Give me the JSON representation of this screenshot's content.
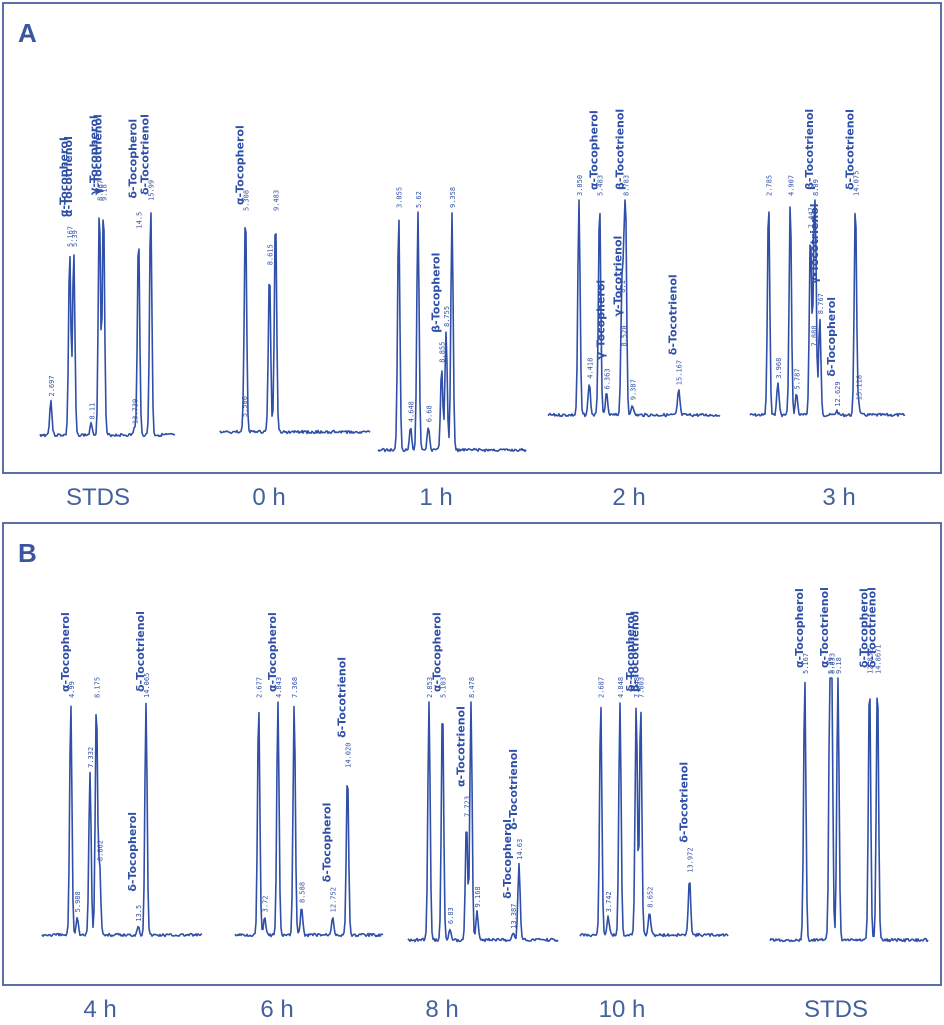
{
  "panels": {
    "a_letter": "A",
    "b_letter": "B",
    "a_time_labels": [
      "STDS",
      "0 h",
      "1 h",
      "2 h",
      "3 h"
    ],
    "b_time_labels": [
      "4 h",
      "6 h",
      "8 h",
      "10 h",
      "STDS"
    ]
  },
  "chart_data": [
    {
      "type": "line",
      "panel": "A",
      "subtitle": "STDS",
      "peaks": [
        {
          "rt": "2.697",
          "height": 0.15,
          "label": ""
        },
        {
          "rt": "5.167",
          "height": 0.8,
          "label": "α-Tocopherol"
        },
        {
          "rt": "5.39",
          "height": 0.8,
          "label": "α-Tocotrienol"
        },
        {
          "rt": "8.11",
          "height": 0.05,
          "label": ""
        },
        {
          "rt": "8.867",
          "height": 1.0,
          "label": "γ-Tocopherol"
        },
        {
          "rt": "9.18",
          "height": 1.0,
          "label": "γ-Tocotrienol"
        },
        {
          "rt": "13.739",
          "height": 0.03,
          "label": ""
        },
        {
          "rt": "14.5",
          "height": 0.88,
          "label": "δ-Tocopherol"
        },
        {
          "rt": "15.99",
          "height": 1.0,
          "label": "δ-Tocotrienol"
        }
      ]
    },
    {
      "type": "line",
      "panel": "A",
      "subtitle": "0 h",
      "peaks": [
        {
          "rt": "5.500",
          "height": 0.05,
          "label": ""
        },
        {
          "rt": "5.308",
          "height": 1.0,
          "label": "α-Tocopherol"
        },
        {
          "rt": "8.615",
          "height": 0.75,
          "label": ""
        },
        {
          "rt": "9.483",
          "height": 1.0,
          "label": ""
        }
      ]
    },
    {
      "type": "line",
      "panel": "A",
      "subtitle": "1 h",
      "peaks": [
        {
          "rt": "3.055",
          "height": 1.0,
          "label": ""
        },
        {
          "rt": "4.648",
          "height": 0.1,
          "label": ""
        },
        {
          "rt": "5.62",
          "height": 1.0,
          "label": ""
        },
        {
          "rt": "6.68",
          "height": 0.1,
          "label": ""
        },
        {
          "rt": "8.855",
          "height": 0.35,
          "label": "β-Tocopherol"
        },
        {
          "rt": "8.755",
          "height": 0.5,
          "label": ""
        },
        {
          "rt": "9.358",
          "height": 1.0,
          "label": ""
        }
      ]
    },
    {
      "type": "line",
      "panel": "A",
      "subtitle": "2 h",
      "peaks": [
        {
          "rt": "3.050",
          "height": 1.0,
          "label": ""
        },
        {
          "rt": "4.418",
          "height": 0.15,
          "label": ""
        },
        {
          "rt": "5.483",
          "height": 1.0,
          "label": "α-Tocopherol"
        },
        {
          "rt": "6.363",
          "height": 0.1,
          "label": "γ-Tocopherol"
        },
        {
          "rt": "8.1",
          "height": 0.55,
          "label": ""
        },
        {
          "rt": "8.520",
          "height": 0.3,
          "label": "γ-Tocotrienol"
        },
        {
          "rt": "8.783",
          "height": 1.0,
          "label": "β-Tocotrienol"
        },
        {
          "rt": "9.387",
          "height": 0.05,
          "label": ""
        },
        {
          "rt": "15.167",
          "height": 0.12,
          "label": "δ-Tocotrienol"
        }
      ]
    },
    {
      "type": "line",
      "panel": "A",
      "subtitle": "3 h",
      "peaks": [
        {
          "rt": "2.785",
          "height": 1.0,
          "label": ""
        },
        {
          "rt": "3.968",
          "height": 0.15,
          "label": ""
        },
        {
          "rt": "4.907",
          "height": 1.0,
          "label": ""
        },
        {
          "rt": "5.787",
          "height": 0.1,
          "label": ""
        },
        {
          "rt": "7.447",
          "height": 0.85,
          "label": ""
        },
        {
          "rt": "7.888",
          "height": 0.3,
          "label": ""
        },
        {
          "rt": "8.09",
          "height": 1.0,
          "label": "β-Tocotrienol"
        },
        {
          "rt": "8.767",
          "height": 0.45,
          "label": "γ-Tocotrienol"
        },
        {
          "rt": "12.629",
          "height": 0.02,
          "label": "δ-Tocopherol"
        },
        {
          "rt": "14.075",
          "height": 1.0,
          "label": "δ-Tocotrienol"
        },
        {
          "rt": "15.118",
          "height": 0.05,
          "label": ""
        }
      ]
    },
    {
      "type": "line",
      "panel": "B",
      "subtitle": "4 h",
      "peaks": [
        {
          "rt": "4.99",
          "height": 1.0,
          "label": "α-Tocopherol"
        },
        {
          "rt": "5.988",
          "height": 0.08,
          "label": ""
        },
        {
          "rt": "7.332",
          "height": 0.7,
          "label": ""
        },
        {
          "rt": "8.175",
          "height": 1.0,
          "label": ""
        },
        {
          "rt": "8.862",
          "height": 0.3,
          "label": ""
        },
        {
          "rt": "14.065",
          "height": 1.0,
          "label": "δ-Tocotrienol"
        },
        {
          "rt": "13.5",
          "height": 0.04,
          "label": "δ-Tocopherol"
        }
      ]
    },
    {
      "type": "line",
      "panel": "B",
      "subtitle": "6 h",
      "peaks": [
        {
          "rt": "2.677",
          "height": 1.0,
          "label": ""
        },
        {
          "rt": "3.72",
          "height": 0.08,
          "label": ""
        },
        {
          "rt": "4.843",
          "height": 1.0,
          "label": "α-Tocopherol"
        },
        {
          "rt": "7.368",
          "height": 1.0,
          "label": ""
        },
        {
          "rt": "8.588",
          "height": 0.12,
          "label": ""
        },
        {
          "rt": "12.752",
          "height": 0.08,
          "label": "δ-Tocopherol"
        },
        {
          "rt": "14.020",
          "height": 0.7,
          "label": "δ-Tocotrienol"
        }
      ]
    },
    {
      "type": "line",
      "panel": "B",
      "subtitle": "8 h",
      "peaks": [
        {
          "rt": "2.853",
          "height": 1.0,
          "label": ""
        },
        {
          "rt": "6.83",
          "height": 0.05,
          "label": ""
        },
        {
          "rt": "5.103",
          "height": 1.0,
          "label": "α-Tocopherol"
        },
        {
          "rt": "7.723",
          "height": 0.5,
          "label": "α-Tocotrienol"
        },
        {
          "rt": "8.478",
          "height": 1.0,
          "label": ""
        },
        {
          "rt": "9.168",
          "height": 0.12,
          "label": ""
        },
        {
          "rt": "13.387",
          "height": 0.03,
          "label": "δ-Tocopherol"
        },
        {
          "rt": "14.63",
          "height": 0.32,
          "label": "δ-Tocotrienol"
        }
      ]
    },
    {
      "type": "line",
      "panel": "B",
      "subtitle": "10 h",
      "peaks": [
        {
          "rt": "2.687",
          "height": 1.0,
          "label": ""
        },
        {
          "rt": "3.742",
          "height": 0.08,
          "label": ""
        },
        {
          "rt": "4.848",
          "height": 1.0,
          "label": ""
        },
        {
          "rt": "7.348",
          "height": 1.0,
          "label": "δ-Tocopherol"
        },
        {
          "rt": "7.803",
          "height": 1.0,
          "label": "β-Tocotrienol"
        },
        {
          "rt": "8.652",
          "height": 0.1,
          "label": ""
        },
        {
          "rt": "13.972",
          "height": 0.25,
          "label": "δ-Tocotrienol"
        }
      ]
    },
    {
      "type": "line",
      "panel": "B",
      "subtitle": "STDS",
      "peaks": [
        {
          "rt": "5.167",
          "height": 1.0,
          "label": "α-Tocopherol"
        },
        {
          "rt": "5.39",
          "height": 1.0,
          "label": "α-Tocotrienol"
        },
        {
          "rt": "8.833",
          "height": 1.0,
          "label": ""
        },
        {
          "rt": "9.18",
          "height": 1.0,
          "label": ""
        },
        {
          "rt": "12.832",
          "height": 1.0,
          "label": "δ-Tocopherol"
        },
        {
          "rt": "14.8671",
          "height": 1.0,
          "label": "δ-Tocotrienol"
        }
      ]
    }
  ]
}
